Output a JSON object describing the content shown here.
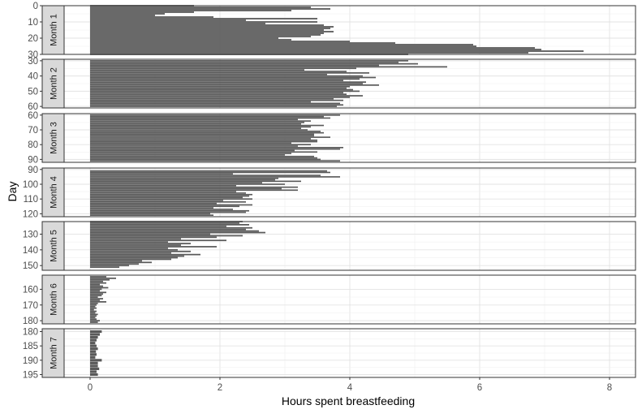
{
  "chart_data": {
    "type": "bar",
    "orientation": "horizontal",
    "xlabel": "Hours spent breastfeeding",
    "ylabel": "Day",
    "xlim": [
      0,
      8
    ],
    "x_ticks": [
      "0",
      "2",
      "4",
      "6",
      "8"
    ],
    "grid": true,
    "bar_color": "#595959",
    "strip_color": "#d9d9d9",
    "panels": [
      {
        "label": "Month 1",
        "y_range": [
          0,
          30
        ],
        "y_ticks": [
          0,
          10,
          20,
          30
        ],
        "days": [
          0,
          1,
          2,
          3,
          4,
          5,
          6,
          7,
          8,
          9,
          10,
          11,
          12,
          13,
          14,
          15,
          16,
          17,
          18,
          19,
          20,
          21,
          22,
          23,
          24,
          25,
          26,
          27,
          28,
          29,
          30
        ],
        "values": [
          1.6,
          3.4,
          3.7,
          3.1,
          1.6,
          1.15,
          1.0,
          1.9,
          3.5,
          2.4,
          3.5,
          2.7,
          3.6,
          3.75,
          3.7,
          3.6,
          3.75,
          3.6,
          3.55,
          3.4,
          2.9,
          3.1,
          4.0,
          4.7,
          5.9,
          5.95,
          6.85,
          6.95,
          7.6,
          6.75,
          4.9
        ]
      },
      {
        "label": "Month 2",
        "y_range": [
          29,
          61
        ],
        "y_ticks": [
          30,
          40,
          50,
          60
        ],
        "days": [
          30,
          31,
          32,
          33,
          34,
          35,
          36,
          37,
          38,
          39,
          40,
          41,
          42,
          43,
          44,
          45,
          46,
          47,
          48,
          49,
          50,
          51,
          52,
          53,
          54,
          55,
          56,
          57,
          58,
          59,
          60
        ],
        "values": [
          4.9,
          4.75,
          5.05,
          4.45,
          5.5,
          4.1,
          3.3,
          3.95,
          4.3,
          3.65,
          4.2,
          4.4,
          4.15,
          3.9,
          4.25,
          4.2,
          4.45,
          4.0,
          3.95,
          4.05,
          4.15,
          3.9,
          3.95,
          4.2,
          4.0,
          3.75,
          3.9,
          3.4,
          3.85,
          3.9,
          3.8
        ]
      },
      {
        "label": "Month 3",
        "y_range": [
          59,
          92
        ],
        "y_ticks": [
          60,
          70,
          80,
          90
        ],
        "days": [
          60,
          61,
          62,
          63,
          64,
          65,
          66,
          67,
          68,
          69,
          70,
          71,
          72,
          73,
          74,
          75,
          76,
          77,
          78,
          79,
          80,
          81,
          82,
          83,
          84,
          85,
          86,
          87,
          88,
          89,
          90,
          91
        ],
        "values": [
          3.85,
          3.6,
          3.7,
          3.2,
          3.4,
          3.3,
          3.25,
          3.6,
          3.4,
          3.25,
          3.35,
          3.55,
          3.6,
          3.45,
          3.45,
          3.7,
          3.4,
          3.5,
          3.5,
          3.1,
          3.4,
          3.2,
          3.9,
          3.85,
          3.15,
          3.5,
          3.1,
          3.0,
          3.45,
          3.5,
          3.55,
          3.85
        ]
      },
      {
        "label": "Month 4",
        "y_range": [
          89,
          122
        ],
        "y_ticks": [
          90,
          100,
          110,
          120
        ],
        "days": [
          91,
          92,
          93,
          94,
          95,
          96,
          97,
          98,
          99,
          100,
          101,
          102,
          103,
          104,
          105,
          106,
          107,
          108,
          109,
          110,
          111,
          112,
          113,
          114,
          115,
          116,
          117,
          118,
          119,
          120,
          121
        ],
        "values": [
          3.65,
          3.7,
          2.2,
          3.55,
          3.85,
          2.9,
          2.85,
          3.25,
          2.65,
          3.0,
          2.25,
          3.2,
          2.95,
          3.2,
          2.25,
          2.4,
          2.5,
          2.45,
          2.35,
          2.5,
          2.05,
          2.4,
          1.95,
          2.5,
          2.3,
          1.9,
          2.2,
          2.45,
          2.4,
          1.85,
          1.9
        ]
      },
      {
        "label": "Month 5",
        "y_range": [
          122,
          153
        ],
        "y_ticks": [
          130,
          140,
          150
        ],
        "days": [
          122,
          123,
          124,
          125,
          126,
          127,
          128,
          129,
          130,
          131,
          132,
          133,
          134,
          135,
          136,
          137,
          138,
          139,
          140,
          141,
          142,
          143,
          144,
          145,
          146,
          147,
          148,
          149,
          150,
          151
        ],
        "values": [
          2.35,
          2.3,
          2.45,
          2.1,
          2.5,
          2.4,
          2.6,
          2.7,
          1.85,
          2.35,
          1.95,
          1.4,
          2.1,
          1.2,
          1.55,
          1.4,
          1.95,
          1.2,
          1.35,
          1.55,
          1.25,
          1.7,
          1.45,
          1.35,
          1.25,
          0.8,
          0.95,
          0.75,
          0.6,
          0.45
        ]
      },
      {
        "label": "Month 6",
        "y_range": [
          151,
          182
        ],
        "y_ticks": [
          160,
          170,
          180
        ],
        "days": [
          152,
          153,
          154,
          155,
          156,
          157,
          158,
          159,
          160,
          161,
          162,
          163,
          164,
          165,
          166,
          167,
          168,
          169,
          170,
          171,
          172,
          173,
          174,
          175,
          176,
          177,
          178,
          179,
          180,
          181
        ],
        "values": [
          0.25,
          0.4,
          0.3,
          0.2,
          0.25,
          0.15,
          0.2,
          0.28,
          0.18,
          0.15,
          0.25,
          0.2,
          0.18,
          0.12,
          0.2,
          0.15,
          0.25,
          0.12,
          0.1,
          0.08,
          0.1,
          0.06,
          0.1,
          0.08,
          0.12,
          0.1,
          0.08,
          0.1,
          0.15,
          0.12
        ]
      },
      {
        "label": "Month 7",
        "y_range": [
          179,
          196
        ],
        "y_ticks": [
          180,
          185,
          190,
          195
        ],
        "days": [
          180,
          181,
          182,
          183,
          184,
          185,
          186,
          187,
          188,
          189,
          190,
          191,
          192,
          193,
          194,
          195
        ],
        "values": [
          0.18,
          0.15,
          0.12,
          0.1,
          0.08,
          0.1,
          0.12,
          0.09,
          0.1,
          0.08,
          0.18,
          0.12,
          0.12,
          0.14,
          0.1,
          0.12
        ]
      }
    ]
  }
}
